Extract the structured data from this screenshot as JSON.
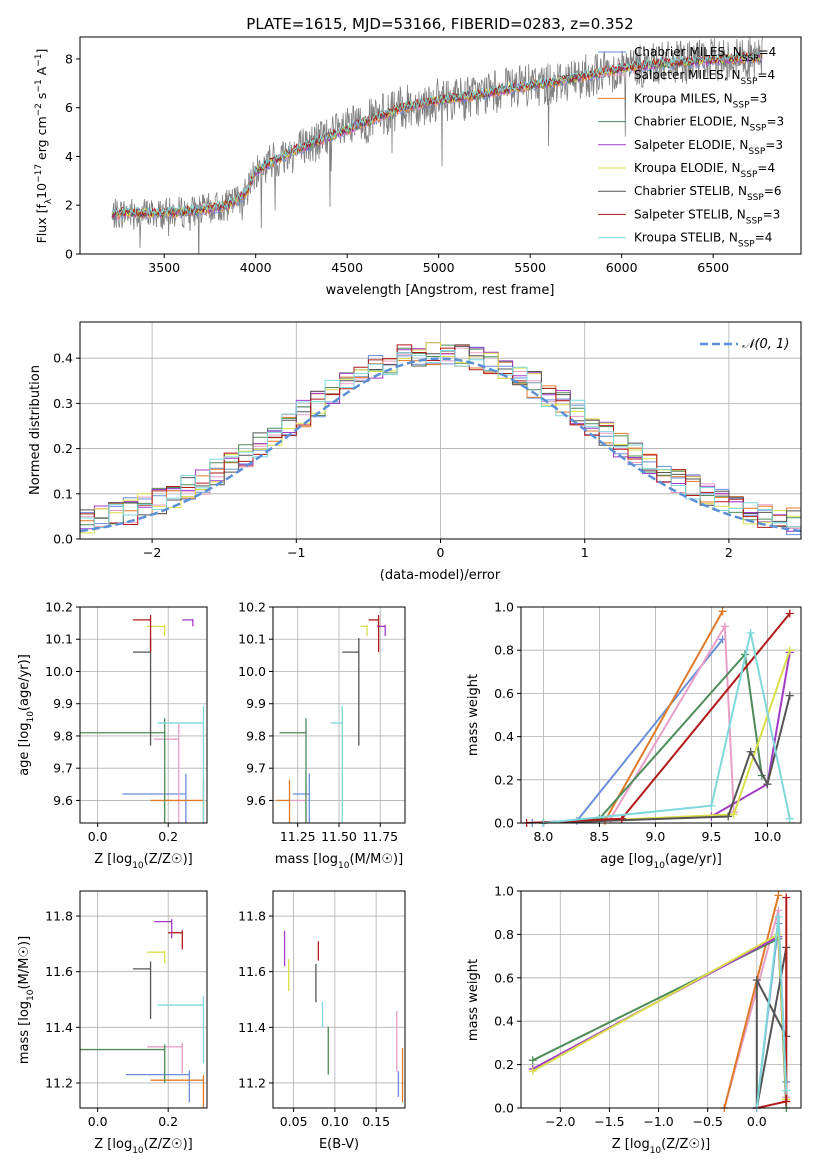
{
  "title": "PLATE=1615, MJD=53166, FIBERID=0283, z=0.352",
  "models": [
    {
      "label": "Chabrier MILES, N<sub>SSP</sub>=4",
      "name": "Chabrier MILES",
      "nssp": "4",
      "color": "#6a8fd8"
    },
    {
      "label": "Salpeter MILES, N<sub>SSP</sub>=4",
      "name": "Salpeter MILES",
      "nssp": "4",
      "color": "#e8a0c8"
    },
    {
      "label": "Kroupa MILES",
      "name": "Kroupa MILES",
      "nssp": "3",
      "color": "#e07b2a"
    },
    {
      "label": "Chabrier ELODIE",
      "name": "Chabrier ELODIE",
      "nssp": "3",
      "color": "#4e8c5a"
    },
    {
      "label": "Salpeter ELODIE",
      "name": "Salpeter ELODIE",
      "nssp": "3",
      "color": "#a23bc7"
    },
    {
      "label": "Kroupa ELODIE",
      "name": "Kroupa ELODIE",
      "nssp": "4",
      "color": "#d9df4a"
    },
    {
      "label": "Chabrier STELIB",
      "name": "Chabrier STELIB",
      "nssp": "6",
      "color": "#555555"
    },
    {
      "label": "Salpeter STELIB",
      "name": "Salpeter STELIB",
      "nssp": "3",
      "color": "#b01a1a"
    },
    {
      "label": "Kroupa STELIB",
      "name": "Kroupa STELIB",
      "nssp": "4",
      "color": "#7fd8dc"
    }
  ],
  "chart_data": [
    {
      "id": "spectrum",
      "type": "line",
      "xlabel": "wavelength [Angstrom, rest frame]",
      "ylabel": "Flux [f_λ 10^-17 erg cm^-2 s^-1 A^-1]",
      "xlim": [
        3040,
        6980
      ],
      "ylim": [
        0,
        8.9
      ],
      "xticks": [
        3500,
        4000,
        4500,
        5000,
        5500,
        6000,
        6500
      ],
      "yticks": [
        0,
        2,
        4,
        6,
        8
      ],
      "legend": "upper-right",
      "continuum": {
        "x": [
          3210,
          3300,
          3500,
          3700,
          3850,
          3950,
          4000,
          4200,
          4400,
          4600,
          4800,
          5000,
          5200,
          5400,
          5600,
          5800,
          6000,
          6200,
          6400,
          6600,
          6800
        ],
        "y": [
          1.6,
          1.7,
          1.65,
          1.8,
          2.0,
          2.5,
          3.4,
          4.2,
          4.8,
          5.4,
          6.0,
          6.3,
          6.5,
          6.8,
          7.0,
          7.3,
          7.6,
          7.8,
          7.9,
          8.0,
          8.1
        ]
      }
    },
    {
      "id": "residuals",
      "type": "histogram",
      "xlabel": "(data-model)/error",
      "ylabel": "Normed distribution",
      "xlim": [
        -2.5,
        2.5
      ],
      "ylim": [
        0,
        0.48
      ],
      "xticks": [
        -2,
        -1,
        0,
        1,
        2
      ],
      "yticks": [
        0.0,
        0.1,
        0.2,
        0.3,
        0.4
      ],
      "legend_label": "N(0,1)",
      "curve": "normal(0,1)"
    },
    {
      "id": "age-vs-Z",
      "type": "errorbar",
      "xlabel": "Z [log10(Z/Z☉)]",
      "ylabel": "age  [log10(age/yr)]",
      "xlim": [
        -0.05,
        0.31
      ],
      "ylim": [
        9.53,
        10.2
      ],
      "xticks": [
        0.0,
        0.2
      ],
      "yticks": [
        9.6,
        9.7,
        9.8,
        9.9,
        10.0,
        10.1,
        10.2
      ],
      "points": [
        {
          "x": 0.25,
          "y": 9.62,
          "xerr": 0.18,
          "yerr": 0.42
        },
        {
          "x": 0.23,
          "y": 9.79,
          "xerr": 0.07,
          "yerr": 0.34
        },
        {
          "x": 0.3,
          "y": 9.6,
          "xerr": 0.15,
          "yerr": 0.42
        },
        {
          "x": 0.19,
          "y": 9.81,
          "xerr": 0.25,
          "yerr": 0.3
        },
        {
          "x": 0.27,
          "y": 10.16,
          "xerr": 0.03,
          "yerr": 0.02
        },
        {
          "x": 0.19,
          "y": 10.14,
          "xerr": 0.05,
          "yerr": 0.03
        },
        {
          "x": 0.15,
          "y": 10.06,
          "xerr": 0.05,
          "yerr": 0.29
        },
        {
          "x": 0.15,
          "y": 10.16,
          "xerr": 0.05,
          "yerr": 0.1
        },
        {
          "x": 0.3,
          "y": 9.84,
          "xerr": 0.13,
          "yerr": 0.35
        }
      ]
    },
    {
      "id": "age-vs-mass",
      "type": "errorbar",
      "xlabel": "mass [log10(M/M☉)]",
      "ylabel": "",
      "xlim": [
        11.1,
        11.9
      ],
      "ylim": [
        9.53,
        10.2
      ],
      "xticks": [
        11.25,
        11.5,
        11.75
      ],
      "yticks": [
        9.6,
        9.7,
        9.8,
        9.9,
        10.0,
        10.1,
        10.2
      ],
      "points": [
        {
          "x": 11.32,
          "y": 9.62,
          "xerr": 0.1,
          "yerr": 0.42
        },
        {
          "x": 11.3,
          "y": 9.6,
          "xerr": 0.09,
          "yerr": 0.35
        },
        {
          "x": 11.2,
          "y": 9.6,
          "xerr": 0.08,
          "yerr": 0.43
        },
        {
          "x": 11.3,
          "y": 9.81,
          "xerr": 0.16,
          "yerr": 0.3
        },
        {
          "x": 11.78,
          "y": 10.14,
          "xerr": 0.05,
          "yerr": 0.03
        },
        {
          "x": 11.67,
          "y": 10.14,
          "xerr": 0.04,
          "yerr": 0.03
        },
        {
          "x": 11.62,
          "y": 10.06,
          "xerr": 0.1,
          "yerr": 0.29
        },
        {
          "x": 11.74,
          "y": 10.16,
          "xerr": 0.06,
          "yerr": 0.1
        },
        {
          "x": 11.52,
          "y": 9.84,
          "xerr": 0.07,
          "yerr": 0.35
        }
      ]
    },
    {
      "id": "massweight-vs-age",
      "type": "line",
      "xlabel": "age  [log10(age/yr)]",
      "ylabel": "mass weight",
      "xlim": [
        7.8,
        10.3
      ],
      "ylim": [
        0,
        1
      ],
      "xticks": [
        8.0,
        8.5,
        9.0,
        9.5,
        10.0
      ],
      "yticks": [
        0.0,
        0.2,
        0.4,
        0.6,
        0.8,
        1.0
      ],
      "series": [
        {
          "x": [
            7.9,
            8.3,
            9.6
          ],
          "y": [
            0.0,
            0.01,
            0.85
          ]
        },
        {
          "x": [
            8.0,
            8.6,
            9.62,
            9.7
          ],
          "y": [
            0.0,
            0.02,
            0.91,
            0.05
          ]
        },
        {
          "x": [
            8.0,
            8.55,
            9.6
          ],
          "y": [
            0.0,
            0.01,
            0.98
          ]
        },
        {
          "x": [
            8.0,
            8.5,
            9.8,
            9.95
          ],
          "y": [
            0.0,
            0.02,
            0.78,
            0.22
          ]
        },
        {
          "x": [
            8.0,
            9.5,
            10.0,
            10.2
          ],
          "y": [
            0.0,
            0.03,
            0.18,
            0.79
          ]
        },
        {
          "x": [
            8.0,
            9.7,
            10.2
          ],
          "y": [
            0.0,
            0.04,
            0.8
          ]
        },
        {
          "x": [
            8.0,
            9.65,
            9.85,
            10.0,
            10.2
          ],
          "y": [
            0.0,
            0.03,
            0.33,
            0.18,
            0.59
          ]
        },
        {
          "x": [
            7.85,
            8.7,
            10.2
          ],
          "y": [
            0.0,
            0.02,
            0.97
          ]
        },
        {
          "x": [
            8.0,
            9.5,
            9.85,
            10.2
          ],
          "y": [
            0.0,
            0.08,
            0.88,
            0.02
          ]
        }
      ]
    },
    {
      "id": "mass-vs-Z",
      "type": "errorbar",
      "xlabel": "Z [log10(Z/Z☉)]",
      "ylabel": "mass [log10(M/M☉)]",
      "xlim": [
        -0.05,
        0.31
      ],
      "ylim": [
        11.11,
        11.89
      ],
      "xticks": [
        0.0,
        0.2
      ],
      "yticks": [
        11.2,
        11.4,
        11.6,
        11.8
      ],
      "points": [
        {
          "x": 0.26,
          "y": 11.23,
          "xerr": 0.18,
          "yerr": 0.1
        },
        {
          "x": 0.24,
          "y": 11.33,
          "xerr": 0.1,
          "yerr": 0.1
        },
        {
          "x": 0.3,
          "y": 11.21,
          "xerr": 0.15,
          "yerr": 0.12
        },
        {
          "x": 0.19,
          "y": 11.32,
          "xerr": 0.25,
          "yerr": 0.12
        },
        {
          "x": 0.21,
          "y": 11.78,
          "xerr": 0.05,
          "yerr": 0.06
        },
        {
          "x": 0.19,
          "y": 11.67,
          "xerr": 0.05,
          "yerr": 0.04
        },
        {
          "x": 0.15,
          "y": 11.61,
          "xerr": 0.05,
          "yerr": 0.18
        },
        {
          "x": 0.24,
          "y": 11.74,
          "xerr": 0.04,
          "yerr": 0.06
        },
        {
          "x": 0.3,
          "y": 11.48,
          "xerr": 0.13,
          "yerr": 0.21
        }
      ]
    },
    {
      "id": "mass-vs-ebv",
      "type": "errorbar",
      "xlabel": "E(B-V)",
      "ylabel": "",
      "xlim": [
        0.025,
        0.185
      ],
      "ylim": [
        11.11,
        11.89
      ],
      "xticks": [
        0.05,
        0.1,
        0.15
      ],
      "yticks": [
        11.2,
        11.4,
        11.6,
        11.8
      ],
      "points": [
        {
          "x": 0.177,
          "y": 11.23,
          "xerr": 0,
          "yerr": 0.08
        },
        {
          "x": 0.175,
          "y": 11.43,
          "xerr": 0,
          "yerr": 0.19
        },
        {
          "x": 0.182,
          "y": 11.3,
          "xerr": 0,
          "yerr": 0.17
        },
        {
          "x": 0.092,
          "y": 11.38,
          "xerr": 0,
          "yerr": 0.15
        },
        {
          "x": 0.039,
          "y": 11.73,
          "xerr": 0,
          "yerr": 0.11
        },
        {
          "x": 0.044,
          "y": 11.63,
          "xerr": 0,
          "yerr": 0.1
        },
        {
          "x": 0.077,
          "y": 11.61,
          "xerr": 0,
          "yerr": 0.12
        },
        {
          "x": 0.08,
          "y": 11.7,
          "xerr": 0,
          "yerr": 0.06
        },
        {
          "x": 0.085,
          "y": 11.48,
          "xerr": 0,
          "yerr": 0.08
        }
      ]
    },
    {
      "id": "massweight-vs-Z",
      "type": "line",
      "xlabel": "Z [log10(Z/Z☉)]",
      "ylabel": "mass weight",
      "xlim": [
        -2.4,
        0.45
      ],
      "ylim": [
        0,
        1
      ],
      "xticks": [
        -2.0,
        -1.5,
        -1.0,
        -0.5,
        0.0
      ],
      "yticks": [
        0.0,
        0.2,
        0.4,
        0.6,
        0.8,
        1.0
      ],
      "series": [
        {
          "x": [
            0.0,
            0.22,
            0.3
          ],
          "y": [
            0.0,
            0.85,
            0.12
          ]
        },
        {
          "x": [
            -0.33,
            0.22,
            0.3
          ],
          "y": [
            0.0,
            0.91,
            0.05
          ]
        },
        {
          "x": [
            -0.33,
            0.22
          ],
          "y": [
            0.0,
            0.98
          ]
        },
        {
          "x": [
            -2.28,
            0.22,
            0.3
          ],
          "y": [
            0.22,
            0.78,
            0.0
          ]
        },
        {
          "x": [
            -2.28,
            0.22,
            0.3
          ],
          "y": [
            0.18,
            0.79,
            0.03
          ]
        },
        {
          "x": [
            -2.28,
            0.22,
            0.3
          ],
          "y": [
            0.17,
            0.8,
            0.04
          ]
        },
        {
          "x": [
            0.0,
            0.0,
            0.3,
            0.3,
            0.0
          ],
          "y": [
            0.0,
            0.59,
            0.33,
            0.74,
            0.0
          ]
        },
        {
          "x": [
            0.0,
            0.3,
            0.3
          ],
          "y": [
            0.0,
            0.03,
            0.97
          ]
        },
        {
          "x": [
            0.0,
            0.22,
            0.3
          ],
          "y": [
            0.0,
            0.88,
            0.08
          ]
        }
      ]
    }
  ]
}
